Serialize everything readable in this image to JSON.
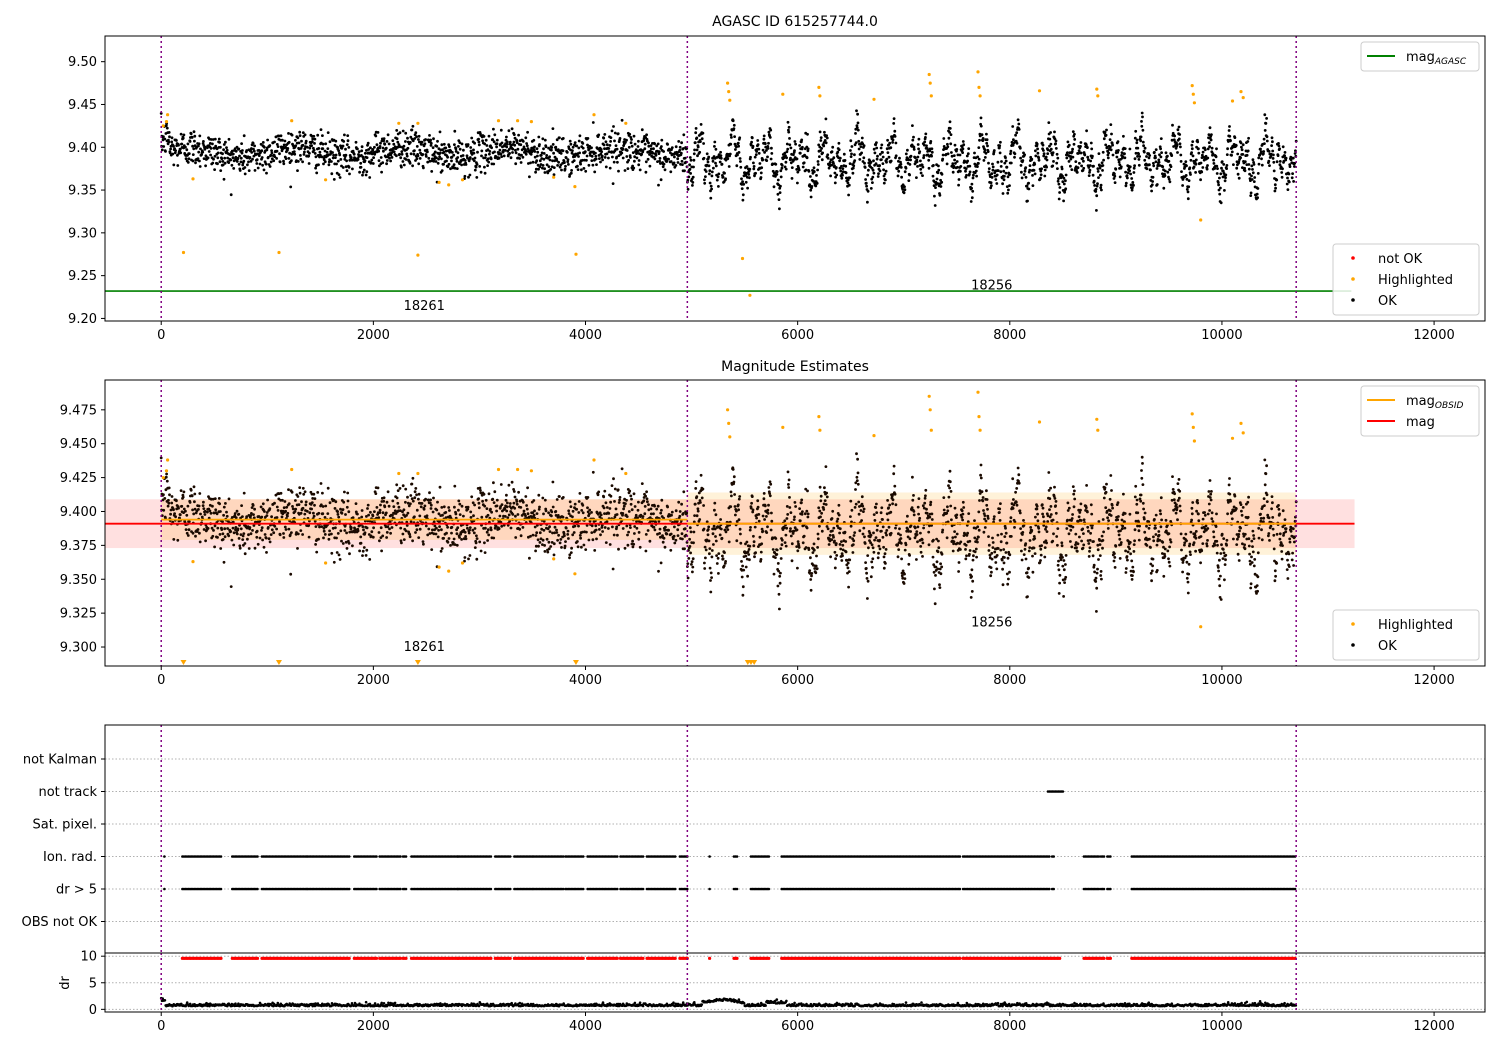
{
  "chart_data": [
    {
      "type": "scatter",
      "title": "AGASC ID 615257744.0",
      "xlim": [
        -530,
        12480
      ],
      "ylim": [
        9.197,
        9.53
      ],
      "xticks": [
        0,
        2000,
        4000,
        6000,
        8000,
        10000,
        12000
      ],
      "yticks": [
        9.2,
        9.25,
        9.3,
        9.35,
        9.4,
        9.45,
        9.5
      ],
      "ytick_format": 2,
      "vlines": [
        0,
        4960,
        10700
      ],
      "hlines": [
        {
          "name": "mag_AGASC",
          "value": 9.232,
          "x0": -530,
          "x1": 11220,
          "color": "#008000"
        }
      ],
      "obsid_labels": [
        {
          "text": "18261",
          "x": 2480,
          "y": 9.21
        },
        {
          "text": "18256",
          "x": 7830,
          "y": 9.234
        }
      ],
      "series": [
        {
          "name": "not OK",
          "color": "#ff0000",
          "points": []
        },
        {
          "name": "Highlighted",
          "color": "#ffa500",
          "points": [
            [
              20,
              9.425
            ],
            [
              50,
              9.43
            ],
            [
              60,
              9.438
            ],
            [
              300,
              9.363
            ],
            [
              1230,
              9.431
            ],
            [
              1550,
              9.362
            ],
            [
              2240,
              9.428
            ],
            [
              2420,
              9.428
            ],
            [
              2620,
              9.359
            ],
            [
              2710,
              9.356
            ],
            [
              2840,
              9.362
            ],
            [
              3180,
              9.431
            ],
            [
              3360,
              9.431
            ],
            [
              3490,
              9.43
            ],
            [
              3700,
              9.365
            ],
            [
              3900,
              9.354
            ],
            [
              4080,
              9.438
            ],
            [
              4380,
              9.428
            ],
            [
              5340,
              9.475
            ],
            [
              5350,
              9.465
            ],
            [
              5360,
              9.455
            ],
            [
              5860,
              9.462
            ],
            [
              6200,
              9.47
            ],
            [
              6210,
              9.46
            ],
            [
              6720,
              9.456
            ],
            [
              7240,
              9.485
            ],
            [
              7250,
              9.475
            ],
            [
              7260,
              9.46
            ],
            [
              7700,
              9.488
            ],
            [
              7710,
              9.47
            ],
            [
              7720,
              9.46
            ],
            [
              8280,
              9.466
            ],
            [
              8820,
              9.468
            ],
            [
              8830,
              9.46
            ],
            [
              9720,
              9.472
            ],
            [
              9730,
              9.462
            ],
            [
              9740,
              9.452
            ],
            [
              10100,
              9.454
            ],
            [
              10180,
              9.465
            ],
            [
              10200,
              9.458
            ],
            [
              9800,
              9.315
            ],
            [
              210,
              9.277
            ],
            [
              1110,
              9.277
            ],
            [
              2420,
              9.274
            ],
            [
              3910,
              9.275
            ],
            [
              5480,
              9.27
            ],
            [
              5550,
              9.227
            ]
          ]
        },
        {
          "name": "OK",
          "color": "#000000",
          "points": []
        }
      ],
      "bands": [],
      "legends": [
        {
          "position": "upper-right",
          "entries": [
            {
              "name": "mag_AGASC",
              "base": "mag",
              "sub": "AGASC",
              "kind": "line",
              "color": "#008000"
            }
          ]
        },
        {
          "position": "lower-right",
          "entries": [
            {
              "name": "not OK",
              "kind": "dot",
              "color": "#ff0000"
            },
            {
              "name": "Highlighted",
              "kind": "dot",
              "color": "#ffa500"
            },
            {
              "name": "OK",
              "kind": "dot",
              "color": "#000000"
            }
          ]
        }
      ]
    },
    {
      "type": "scatter",
      "title": "Magnitude Estimates",
      "xlim": [
        -530,
        12480
      ],
      "ylim": [
        9.286,
        9.497
      ],
      "xticks": [
        0,
        2000,
        4000,
        6000,
        8000,
        10000,
        12000
      ],
      "yticks": [
        9.3,
        9.325,
        9.35,
        9.375,
        9.4,
        9.425,
        9.45,
        9.475
      ],
      "ytick_format": 3,
      "vlines": [
        0,
        4960,
        10700
      ],
      "hlines": [
        {
          "name": "mag",
          "value": 9.391,
          "x0": -530,
          "x1": 11250,
          "color": "#ff0000"
        },
        {
          "name": "mag_OBSID",
          "value": 9.394,
          "x0": 0,
          "x1": 4960,
          "color": "#ffa500"
        },
        {
          "name": "mag_OBSID",
          "value": 9.391,
          "x0": 4960,
          "x1": 10700,
          "color": "#ffa500"
        }
      ],
      "bands": [
        {
          "y0": 9.373,
          "y1": 9.409,
          "x0": -530,
          "x1": 11250,
          "color": "#ff0000",
          "opacity": 0.12
        },
        {
          "y0": 9.379,
          "y1": 9.409,
          "x0": 0,
          "x1": 4960,
          "color": "#ffa500",
          "opacity": 0.15
        },
        {
          "y0": 9.368,
          "y1": 9.414,
          "x0": 4960,
          "x1": 10700,
          "color": "#ffa500",
          "opacity": 0.15
        }
      ],
      "obsid_labels": [
        {
          "text": "18261",
          "x": 2480,
          "y": 9.297
        },
        {
          "text": "18256",
          "x": 7830,
          "y": 9.315
        }
      ],
      "below_markers": [
        210,
        1110,
        2420,
        3910,
        5530,
        5560,
        5590
      ],
      "series": [
        {
          "name": "Highlighted",
          "color": "#ffa500",
          "points": [
            [
              20,
              9.425
            ],
            [
              50,
              9.43
            ],
            [
              60,
              9.438
            ],
            [
              300,
              9.363
            ],
            [
              1230,
              9.431
            ],
            [
              1550,
              9.362
            ],
            [
              2240,
              9.428
            ],
            [
              2420,
              9.428
            ],
            [
              2620,
              9.359
            ],
            [
              2710,
              9.356
            ],
            [
              2840,
              9.362
            ],
            [
              3180,
              9.431
            ],
            [
              3360,
              9.431
            ],
            [
              3490,
              9.43
            ],
            [
              3700,
              9.365
            ],
            [
              3900,
              9.354
            ],
            [
              4080,
              9.438
            ],
            [
              4380,
              9.428
            ],
            [
              5340,
              9.475
            ],
            [
              5350,
              9.465
            ],
            [
              5360,
              9.455
            ],
            [
              5860,
              9.462
            ],
            [
              6200,
              9.47
            ],
            [
              6210,
              9.46
            ],
            [
              6720,
              9.456
            ],
            [
              7240,
              9.485
            ],
            [
              7250,
              9.475
            ],
            [
              7260,
              9.46
            ],
            [
              7700,
              9.488
            ],
            [
              7710,
              9.47
            ],
            [
              7720,
              9.46
            ],
            [
              8280,
              9.466
            ],
            [
              8820,
              9.468
            ],
            [
              8830,
              9.46
            ],
            [
              9720,
              9.472
            ],
            [
              9730,
              9.462
            ],
            [
              9740,
              9.452
            ],
            [
              10100,
              9.454
            ],
            [
              10180,
              9.465
            ],
            [
              10200,
              9.458
            ],
            [
              9800,
              9.315
            ]
          ]
        },
        {
          "name": "OK",
          "color": "#000000",
          "points": []
        }
      ],
      "legends": [
        {
          "position": "upper-right",
          "entries": [
            {
              "name": "mag_OBSID",
              "base": "mag",
              "sub": "OBSID",
              "kind": "line",
              "color": "#ffa500"
            },
            {
              "name": "mag",
              "kind": "line",
              "color": "#ff0000"
            }
          ]
        },
        {
          "position": "lower-right",
          "entries": [
            {
              "name": "Highlighted",
              "kind": "dot",
              "color": "#ffa500"
            },
            {
              "name": "OK",
              "kind": "dot",
              "color": "#000000"
            }
          ]
        }
      ]
    },
    {
      "type": "scatter",
      "title": "",
      "xlim": [
        -530,
        12480
      ],
      "vlines": [
        0,
        4960,
        10700
      ],
      "flags": [
        "not Kalman",
        "not track",
        "Sat. pixel.",
        "Ion. rad.",
        "dr > 5",
        "OBS not OK"
      ],
      "flag_segments": {
        "not Kalman": [],
        "not track": [
          [
            8360,
            8500
          ]
        ],
        "Sat. pixel.": [],
        "Ion. rad.": [
          [
            200,
            570
          ],
          [
            670,
            920
          ],
          [
            950,
            1380
          ],
          [
            1380,
            1780
          ],
          [
            1820,
            2040
          ],
          [
            2060,
            2260
          ],
          [
            2280,
            2320
          ],
          [
            2360,
            2420
          ],
          [
            2430,
            2800
          ],
          [
            2800,
            3120
          ],
          [
            3150,
            3300
          ],
          [
            3330,
            3500
          ],
          [
            3510,
            3790
          ],
          [
            3810,
            3990
          ],
          [
            4020,
            4300
          ],
          [
            4330,
            4420
          ],
          [
            4430,
            4550
          ],
          [
            4580,
            4850
          ],
          [
            4890,
            4960
          ],
          [
            5170,
            5180
          ],
          [
            5400,
            5430
          ],
          [
            5560,
            5730
          ],
          [
            5850,
            7540
          ],
          [
            7560,
            8380
          ],
          [
            8400,
            8420
          ],
          [
            8700,
            8840
          ],
          [
            8860,
            8890
          ],
          [
            8920,
            8950
          ],
          [
            9150,
            10700
          ]
        ],
        "dr > 5": [
          [
            200,
            570
          ],
          [
            670,
            920
          ],
          [
            950,
            1380
          ],
          [
            1380,
            1780
          ],
          [
            1820,
            2040
          ],
          [
            2060,
            2260
          ],
          [
            2280,
            2320
          ],
          [
            2360,
            2420
          ],
          [
            2430,
            2800
          ],
          [
            2800,
            3120
          ],
          [
            3150,
            3300
          ],
          [
            3330,
            3500
          ],
          [
            3510,
            3790
          ],
          [
            3810,
            3990
          ],
          [
            4020,
            4300
          ],
          [
            4330,
            4420
          ],
          [
            4430,
            4550
          ],
          [
            4580,
            4850
          ],
          [
            4890,
            4960
          ],
          [
            5170,
            5180
          ],
          [
            5400,
            5430
          ],
          [
            5560,
            5730
          ],
          [
            5850,
            7540
          ],
          [
            7560,
            8380
          ],
          [
            8400,
            8420
          ],
          [
            8700,
            8840
          ],
          [
            8860,
            8890
          ],
          [
            8920,
            8950
          ],
          [
            9150,
            10700
          ]
        ],
        "OBS not OK": []
      },
      "flag_dots": [
        [
          30,
          "Ion. rad."
        ],
        [
          30,
          "dr > 5"
        ]
      ]
    },
    {
      "type": "scatter",
      "title": "",
      "xlim": [
        -530,
        12480
      ],
      "ylim": [
        -0.5,
        10.6
      ],
      "ylabel": "dr",
      "yticks": [
        0,
        5,
        10
      ],
      "xticks": [
        0,
        2000,
        4000,
        6000,
        8000,
        10000,
        12000
      ],
      "vlines": [
        0,
        4960,
        10700
      ],
      "dr_threshold_segments": [
        [
          200,
          570
        ],
        [
          670,
          920
        ],
        [
          950,
          1380
        ],
        [
          1380,
          1780
        ],
        [
          1820,
          2040
        ],
        [
          2060,
          2260
        ],
        [
          2280,
          2320
        ],
        [
          2360,
          2420
        ],
        [
          2430,
          2800
        ],
        [
          2800,
          3120
        ],
        [
          3150,
          3300
        ],
        [
          3330,
          3500
        ],
        [
          3510,
          3790
        ],
        [
          3810,
          3990
        ],
        [
          4020,
          4300
        ],
        [
          4330,
          4420
        ],
        [
          4430,
          4550
        ],
        [
          4580,
          4850
        ],
        [
          4890,
          4960
        ],
        [
          5170,
          5180
        ],
        [
          5400,
          5430
        ],
        [
          5560,
          5730
        ],
        [
          5850,
          7540
        ],
        [
          7560,
          8480
        ],
        [
          8700,
          8840
        ],
        [
          8860,
          8890
        ],
        [
          8920,
          8950
        ],
        [
          9150,
          10700
        ]
      ],
      "dr_threshold_value": 9.6,
      "dr_typical": 0.6
    }
  ]
}
